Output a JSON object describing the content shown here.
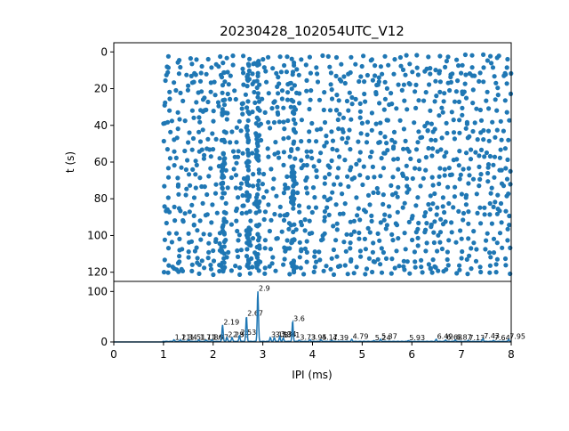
{
  "chart_data": [
    {
      "type": "scatter",
      "title": "20230428_102054UTC_V12",
      "xlabel": "",
      "ylabel": "t (s)",
      "xlim": [
        0,
        8
      ],
      "ylim": [
        125,
        -5
      ],
      "y_inverted": true,
      "yticks": [
        "0",
        "20",
        "40",
        "60",
        "80",
        "100",
        "120"
      ],
      "color": "#1f77b4",
      "points_note": "dense raster of spike events; points generated across x 1.0-8.0 ms and t 3-120 s with column clusters near 2.2, 2.7, 2.9, 3.6 ms",
      "t_rows": [
        3,
        8,
        12,
        17,
        22,
        27,
        32,
        38,
        43,
        48,
        54,
        58,
        63,
        68,
        73,
        78,
        84,
        88,
        93,
        98,
        103,
        108,
        113,
        117,
        120
      ],
      "dense_x": [
        2.2,
        2.7,
        2.9,
        3.6
      ]
    },
    {
      "type": "line",
      "title": "",
      "xlabel": "IPI (ms)",
      "ylabel": "",
      "xlim": [
        0,
        8
      ],
      "ylim": [
        0,
        120
      ],
      "xticks": [
        "0",
        "1",
        "2",
        "3",
        "4",
        "5",
        "6",
        "7",
        "8"
      ],
      "yticks": [
        "0",
        "100"
      ],
      "color": "#1f77b4",
      "peaks": [
        {
          "x": 1.21,
          "y": 3,
          "label": "1.21"
        },
        {
          "x": 1.34,
          "y": 3,
          "label": "1.34"
        },
        {
          "x": 1.51,
          "y": 3,
          "label": "1.51"
        },
        {
          "x": 1.71,
          "y": 3,
          "label": "1.71"
        },
        {
          "x": 1.86,
          "y": 3,
          "label": "1.86"
        },
        {
          "x": 1.97,
          "y": 3,
          "label": "1.97"
        },
        {
          "x": 2.19,
          "y": 33,
          "label": "2.19"
        },
        {
          "x": 2.28,
          "y": 8,
          "label": "2.28"
        },
        {
          "x": 2.38,
          "y": 8,
          "label": "2.38"
        },
        {
          "x": 2.53,
          "y": 12,
          "label": "2.53"
        },
        {
          "x": 2.67,
          "y": 50,
          "label": "2.67"
        },
        {
          "x": 2.9,
          "y": 100,
          "label": "2.9"
        },
        {
          "x": 3.15,
          "y": 8,
          "label": "3.15"
        },
        {
          "x": 3.23,
          "y": 8,
          "label": "3.23"
        },
        {
          "x": 3.34,
          "y": 9,
          "label": "3.34"
        },
        {
          "x": 3.41,
          "y": 7,
          "label": "3.41"
        },
        {
          "x": 3.6,
          "y": 40,
          "label": "3.6"
        },
        {
          "x": 3.73,
          "y": 3,
          "label": "3.73"
        },
        {
          "x": 3.95,
          "y": 3,
          "label": "3.95"
        },
        {
          "x": 4.17,
          "y": 3,
          "label": "4.17"
        },
        {
          "x": 4.39,
          "y": 2,
          "label": "4.39"
        },
        {
          "x": 4.79,
          "y": 4,
          "label": "4.79"
        },
        {
          "x": 5.24,
          "y": 2,
          "label": "5.24"
        },
        {
          "x": 5.37,
          "y": 4,
          "label": "5.37"
        },
        {
          "x": 5.93,
          "y": 2,
          "label": "5.93"
        },
        {
          "x": 6.49,
          "y": 4,
          "label": "6.49"
        },
        {
          "x": 6.68,
          "y": 3,
          "label": "6.68"
        },
        {
          "x": 6.87,
          "y": 3,
          "label": "6.87"
        },
        {
          "x": 7.13,
          "y": 2,
          "label": "7.13"
        },
        {
          "x": 7.43,
          "y": 5,
          "label": "7.43"
        },
        {
          "x": 7.64,
          "y": 2,
          "label": "7.64"
        },
        {
          "x": 7.95,
          "y": 4,
          "label": "7.95"
        }
      ]
    }
  ]
}
